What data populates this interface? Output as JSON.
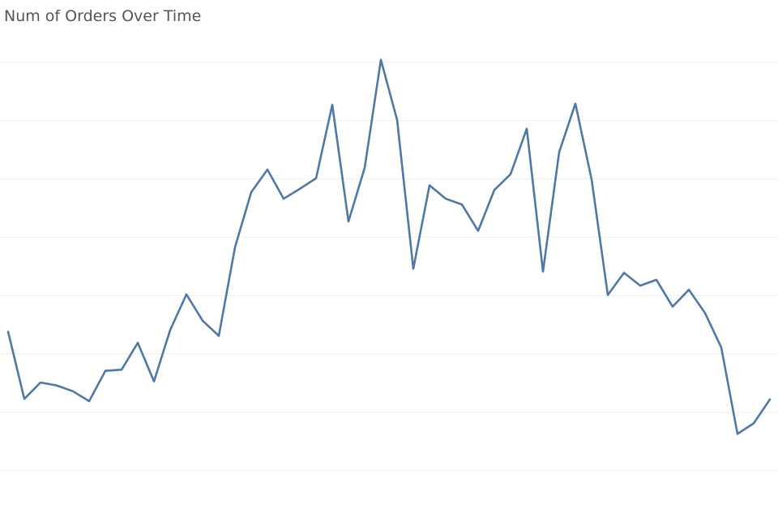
{
  "chart_data": {
    "type": "line",
    "title": "Num of Orders Over Time",
    "xlabel": "",
    "ylabel": "",
    "grid": true,
    "ylim": [
      0,
      8
    ],
    "y_gridlines": [
      1,
      2,
      3,
      4,
      5,
      6,
      7,
      8
    ],
    "series": [
      {
        "color": "#4e79a7",
        "values": [
          3.37,
          2.22,
          2.5,
          2.45,
          2.35,
          2.18,
          2.7,
          2.72,
          3.18,
          2.52,
          3.4,
          4.01,
          3.56,
          3.3,
          4.82,
          5.76,
          6.15,
          5.65,
          5.82,
          6.0,
          7.26,
          5.26,
          6.18,
          8.03,
          7.0,
          4.45,
          5.88,
          5.65,
          5.55,
          5.1,
          5.8,
          6.07,
          6.85,
          4.4,
          6.45,
          7.28,
          5.98,
          4.0,
          4.38,
          4.16,
          4.26,
          3.8,
          4.09,
          3.69,
          3.1,
          1.62,
          1.8,
          2.21
        ]
      }
    ]
  }
}
